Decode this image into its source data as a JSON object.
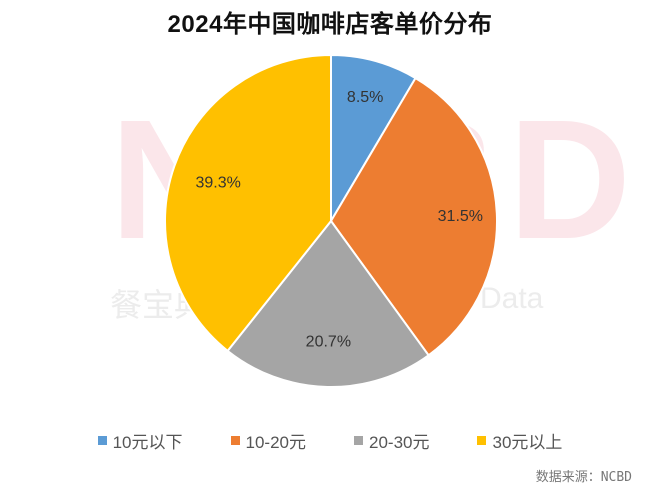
{
  "title": "2024年中国咖啡店客单价分布",
  "watermark": {
    "big": "NCBD",
    "left": "餐宝典",
    "right": "Data"
  },
  "source": "数据来源：NCBD",
  "chart_data": {
    "type": "pie",
    "title": "2024年中国咖啡店客单价分布",
    "categories": [
      "10元以下",
      "10-20元",
      "20-30元",
      "30元以上"
    ],
    "values": [
      8.5,
      31.5,
      20.7,
      39.3
    ],
    "labels": [
      "8.5%",
      "31.5%",
      "20.7%",
      "39.3%"
    ],
    "colors": [
      "#5b9bd5",
      "#ed7d31",
      "#a5a5a5",
      "#ffc000"
    ],
    "start_angle": "12 o'clock, clockwise",
    "legend_position": "bottom"
  },
  "legend": [
    {
      "label": "10元以下",
      "color": "#5b9bd5"
    },
    {
      "label": "10-20元",
      "color": "#ed7d31"
    },
    {
      "label": "20-30元",
      "color": "#a5a5a5"
    },
    {
      "label": "30元以上",
      "color": "#ffc000"
    }
  ]
}
